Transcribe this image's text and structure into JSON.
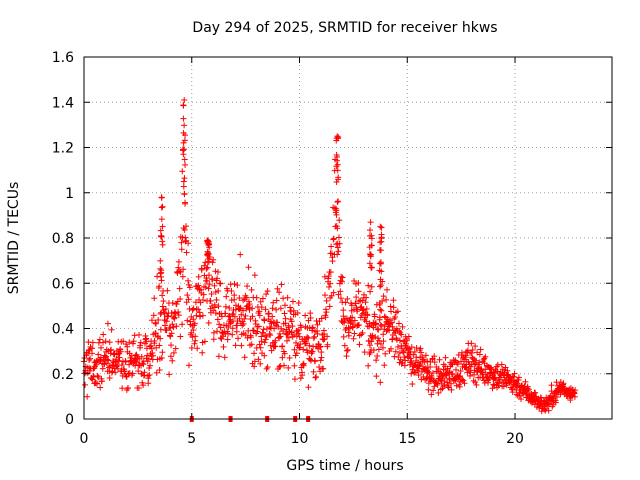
{
  "chart_data": {
    "type": "scatter",
    "title": "Day 294 of 2025, SRMTID for receiver hkws",
    "xlabel": "GPS time / hours",
    "ylabel": "SRMTID / TECUs",
    "xlim": [
      0,
      24.5
    ],
    "ylim": [
      0,
      1.6
    ],
    "xticks": [
      0,
      5,
      10,
      15,
      20
    ],
    "xtick_labels": [
      "0",
      "5",
      "10",
      "15",
      "20"
    ],
    "yticks": [
      0,
      0.2,
      0.4,
      0.6,
      0.8,
      1.0,
      1.2,
      1.4,
      1.6
    ],
    "ytick_labels": [
      "0",
      "0.2",
      "0.4",
      "0.6",
      "0.8",
      "1",
      "1.2",
      "1.4",
      "1.6"
    ],
    "grid": true,
    "marker": "plus",
    "color": "#ff0000",
    "series": [
      {
        "name": "SRMTID",
        "envelope": {
          "x": [
            0,
            0.5,
            1.0,
            1.5,
            2.0,
            2.5,
            3.0,
            3.3,
            3.5,
            3.7,
            4.0,
            4.3,
            4.5,
            4.65,
            4.8,
            5.0,
            5.5,
            5.7,
            6.0,
            6.5,
            7.0,
            7.5,
            8.0,
            8.5,
            9.0,
            9.5,
            10.0,
            10.5,
            11.0,
            11.4,
            11.6,
            11.8,
            12.0,
            12.3,
            12.6,
            13.0,
            13.5,
            14.0,
            14.5,
            14.8,
            15.0,
            15.5,
            16.0,
            16.5,
            17.0,
            17.5,
            18.0,
            18.5,
            19.0,
            19.5,
            20.0,
            20.5,
            20.8,
            21.0,
            21.3,
            21.6,
            21.9,
            22.2,
            22.5,
            22.8
          ],
          "mean": [
            0.22,
            0.24,
            0.26,
            0.27,
            0.25,
            0.24,
            0.3,
            0.38,
            0.4,
            0.45,
            0.38,
            0.48,
            0.7,
            0.95,
            0.55,
            0.4,
            0.48,
            0.62,
            0.55,
            0.42,
            0.45,
            0.48,
            0.42,
            0.4,
            0.42,
            0.38,
            0.34,
            0.33,
            0.34,
            0.55,
            0.95,
            0.7,
            0.45,
            0.4,
            0.45,
            0.43,
            0.38,
            0.43,
            0.4,
            0.33,
            0.28,
            0.24,
            0.2,
            0.18,
            0.2,
            0.22,
            0.26,
            0.22,
            0.2,
            0.18,
            0.16,
            0.12,
            0.1,
            0.08,
            0.06,
            0.08,
            0.12,
            0.14,
            0.12,
            0.11
          ],
          "spread": [
            0.1,
            0.1,
            0.12,
            0.1,
            0.1,
            0.1,
            0.12,
            0.14,
            0.18,
            0.22,
            0.14,
            0.2,
            0.3,
            0.42,
            0.22,
            0.16,
            0.2,
            0.14,
            0.18,
            0.16,
            0.18,
            0.16,
            0.16,
            0.16,
            0.16,
            0.14,
            0.14,
            0.14,
            0.14,
            0.2,
            0.3,
            0.22,
            0.18,
            0.14,
            0.18,
            0.16,
            0.16,
            0.16,
            0.14,
            0.1,
            0.08,
            0.07,
            0.07,
            0.06,
            0.07,
            0.07,
            0.08,
            0.06,
            0.06,
            0.06,
            0.05,
            0.04,
            0.04,
            0.03,
            0.03,
            0.04,
            0.04,
            0.04,
            0.03,
            0.03
          ]
        },
        "peaks": [
          {
            "x": 3.6,
            "y": 0.98
          },
          {
            "x": 4.65,
            "y": 1.41
          },
          {
            "x": 5.75,
            "y": 0.79
          },
          {
            "x": 11.75,
            "y": 1.25
          },
          {
            "x": 13.3,
            "y": 0.87
          },
          {
            "x": 13.75,
            "y": 0.85
          }
        ]
      }
    ],
    "gap_markers_x": [
      5.0,
      6.8,
      8.5,
      9.8,
      10.4
    ]
  }
}
